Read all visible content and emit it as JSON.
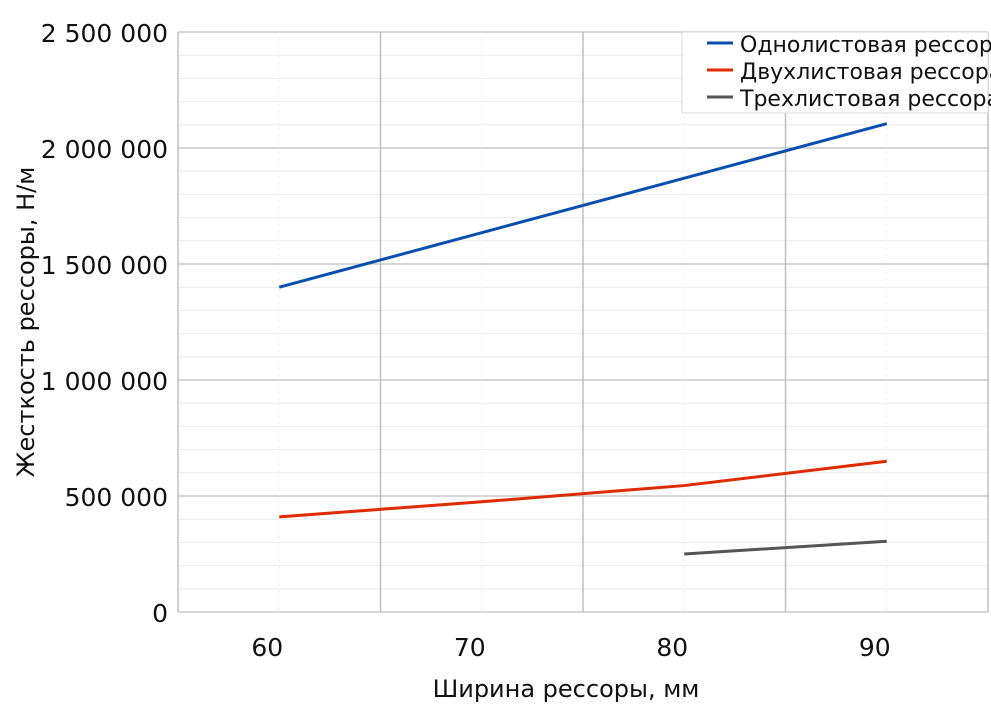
{
  "chart_data": {
    "type": "line",
    "title": "",
    "xlabel": "Ширина рессоры, мм",
    "ylabel": "Жесткость рессоры, Н/м",
    "xlim": [
      55,
      95
    ],
    "ylim": [
      0,
      2500000
    ],
    "x_ticks": [
      60,
      70,
      80,
      90
    ],
    "x_tick_labels": [
      "60",
      "70",
      "80",
      "90"
    ],
    "y_ticks": [
      0,
      500000,
      1000000,
      1500000,
      2000000,
      2500000
    ],
    "y_tick_labels": [
      "0",
      "500 000",
      "1 000 000",
      "1 500 000",
      "2 000 000",
      "2 500 000"
    ],
    "grid": true,
    "legend_position": "top-right",
    "series": [
      {
        "name": "Однолистовая рессора",
        "color": "#0a4fb0",
        "x": [
          60,
          70,
          80,
          90
        ],
        "y": [
          1400000,
          1635000,
          1870000,
          2105000
        ]
      },
      {
        "name": "Двухлистовая рессора",
        "color": "#e02a00",
        "x": [
          60,
          70,
          80,
          90
        ],
        "y": [
          410000,
          475000,
          545000,
          650000
        ]
      },
      {
        "name": "Трехлистовая рессора",
        "color": "#555555",
        "x": [
          80,
          90
        ],
        "y": [
          250000,
          305000
        ]
      }
    ]
  }
}
